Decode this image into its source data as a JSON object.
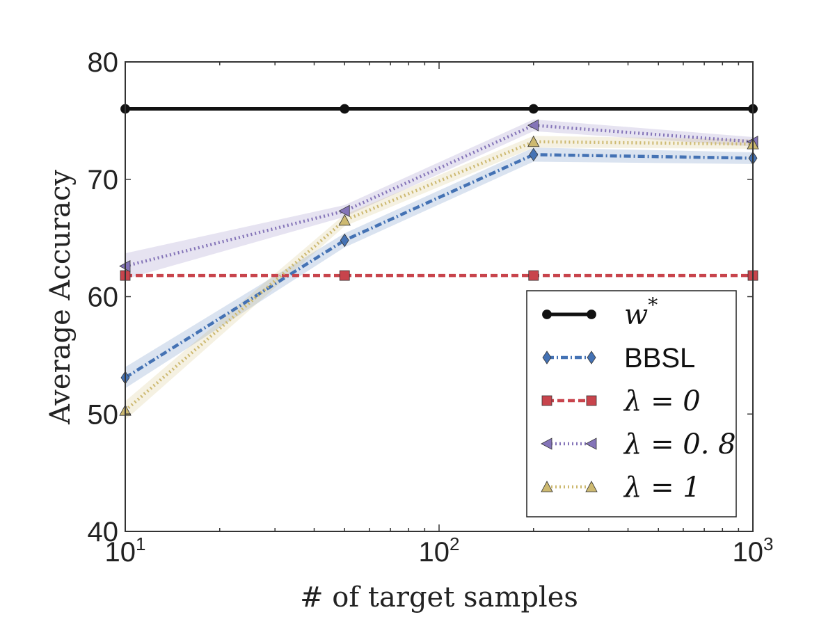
{
  "chart_data": {
    "type": "line",
    "title": "",
    "xlabel": "# of target samples",
    "ylabel": "Average Accuracy",
    "x_scale": "log",
    "xlim": [
      10,
      1000
    ],
    "ylim": [
      40,
      80
    ],
    "x_ticks": [
      {
        "base": "10",
        "exp": "1",
        "value": 10
      },
      {
        "base": "10",
        "exp": "2",
        "value": 100
      },
      {
        "base": "10",
        "exp": "3",
        "value": 1000
      }
    ],
    "y_ticks": [
      {
        "label": "40",
        "value": 40
      },
      {
        "label": "50",
        "value": 50
      },
      {
        "label": "60",
        "value": 60
      },
      {
        "label": "70",
        "value": 70
      },
      {
        "label": "80",
        "value": 80
      }
    ],
    "x": [
      10,
      50,
      200,
      1000
    ],
    "series": [
      {
        "name": "w*",
        "legend_label": "w",
        "legend_sup": "*",
        "values": [
          76,
          76,
          76,
          76
        ],
        "band": [
          0,
          0,
          0,
          0
        ],
        "color": "#111111",
        "marker": "circle",
        "dash": "solid",
        "style": "math"
      },
      {
        "name": "BBSL",
        "legend_label": "BBSL",
        "legend_sup": "",
        "values": [
          53.1,
          64.8,
          72.1,
          71.8
        ],
        "band": [
          0.9,
          0.6,
          0.6,
          0.5
        ],
        "color": "#4472b4",
        "marker": "diamond",
        "dash": "dashdot",
        "style": "plain"
      },
      {
        "name": "λ = 0",
        "legend_label": "λ = 0",
        "legend_sup": "",
        "values": [
          61.8,
          61.8,
          61.8,
          61.8
        ],
        "band": [
          0,
          0,
          0,
          0
        ],
        "color": "#c8444c",
        "marker": "square",
        "dash": "dashed",
        "style": "math"
      },
      {
        "name": "λ = 0.8",
        "legend_label": "λ = 0. 8",
        "legend_sup": "",
        "values": [
          62.6,
          67.3,
          74.6,
          73.2
        ],
        "band": [
          1.1,
          0.5,
          0.5,
          0.4
        ],
        "color": "#8474b8",
        "marker": "triangle-left",
        "dash": "dotted",
        "style": "math"
      },
      {
        "name": "λ = 1",
        "legend_label": "λ = 1",
        "legend_sup": "",
        "values": [
          50.3,
          66.5,
          73.2,
          73.0
        ],
        "band": [
          0.8,
          0.5,
          0.5,
          0.4
        ],
        "color": "#cdb970",
        "marker": "triangle-up",
        "dash": "dotted",
        "style": "math"
      }
    ],
    "grid": false,
    "legend_position": "lower-right"
  }
}
